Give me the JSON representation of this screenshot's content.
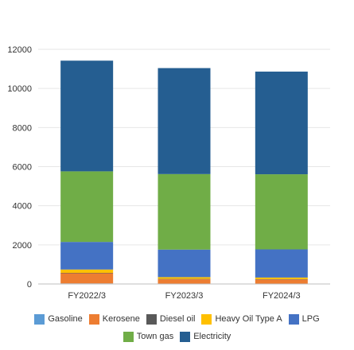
{
  "chart_data": {
    "type": "bar",
    "stacked": true,
    "categories": [
      "FY2022/3",
      "FY2023/3",
      "FY2024/3"
    ],
    "series": [
      {
        "name": "Gasoline",
        "color": "#5b9bd5",
        "values": [
          30,
          20,
          20
        ]
      },
      {
        "name": "Kerosene",
        "color": "#ed7d31",
        "values": [
          520,
          220,
          210
        ]
      },
      {
        "name": "Diesel oil",
        "color": "#595959",
        "values": [
          20,
          20,
          20
        ]
      },
      {
        "name": "Heavy Oil Type A",
        "color": "#ffc000",
        "values": [
          170,
          90,
          80
        ]
      },
      {
        "name": "LPG",
        "color": "#4472c4",
        "values": [
          1410,
          1410,
          1440
        ]
      },
      {
        "name": "Town gas",
        "color": "#70ad47",
        "values": [
          3610,
          3860,
          3840
        ]
      },
      {
        "name": "Electricity",
        "color": "#255e91",
        "values": [
          5660,
          5420,
          5250
        ]
      }
    ],
    "ylim": [
      0,
      12000
    ],
    "yticks": [
      "0",
      "2000",
      "4000",
      "6000",
      "8000",
      "10000",
      "12000"
    ],
    "grid": true,
    "legend_position": "bottom"
  }
}
